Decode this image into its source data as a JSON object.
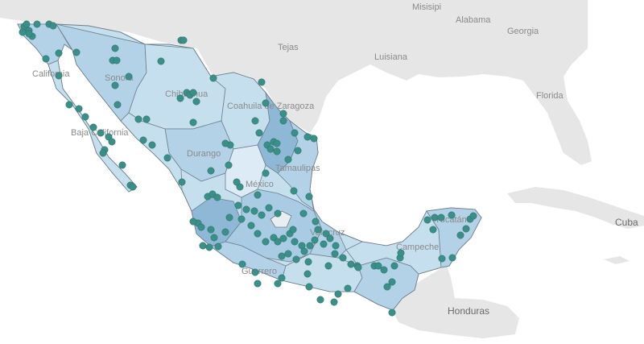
{
  "colors": {
    "water": "#ffffff",
    "land": "#e6e6e6",
    "mx_light": "#c6dfee",
    "mx_mid": "#a9cbe3",
    "mx_dark": "#8fb8d6",
    "mx_lightest": "#dcebf5",
    "point": "#3a8f88"
  },
  "labels": {
    "misisipi": "Misisipi",
    "alabama": "Alabama",
    "georgia": "Georgia",
    "tejas": "Tejas",
    "luisiana": "Luisiana",
    "florida": "Florida",
    "cuba": "Cuba",
    "honduras": "Honduras",
    "california": "California",
    "sonora": "Sonora",
    "chihuahua": "Chihuahua",
    "coahuila": "Coahuila de Zaragoza",
    "baja_california": "Baja California",
    "durango": "Durango",
    "tamaulipas": "Tamaulipas",
    "mexico": "México",
    "veracruz": "Veracruz",
    "yucatan": "Yucatán",
    "campeche": "Campeche",
    "guerrero": "Guerrero"
  }
}
